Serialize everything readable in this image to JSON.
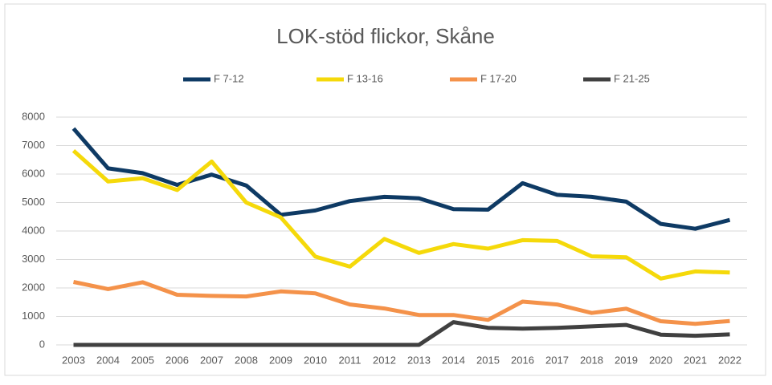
{
  "chart_data": {
    "type": "line",
    "title": "LOK-stöd flickor, Skåne",
    "categories": [
      "2003",
      "2004",
      "2005",
      "2006",
      "2007",
      "2008",
      "2009",
      "2010",
      "2011",
      "2012",
      "2013",
      "2014",
      "2015",
      "2016",
      "2017",
      "2018",
      "2019",
      "2020",
      "2021",
      "2022"
    ],
    "series": [
      {
        "name": "F 7-12",
        "color": "#0e3a64",
        "values": [
          7600,
          6200,
          6030,
          5620,
          5980,
          5600,
          4570,
          4720,
          5050,
          5200,
          5150,
          4770,
          4750,
          5680,
          5270,
          5200,
          5030,
          4250,
          4080,
          4390
        ]
      },
      {
        "name": "F 13-16",
        "color": "#f5d90a",
        "values": [
          6820,
          5740,
          5850,
          5440,
          6440,
          5000,
          4480,
          3100,
          2750,
          3720,
          3230,
          3540,
          3380,
          3680,
          3650,
          3110,
          3080,
          2330,
          2580,
          2540
        ]
      },
      {
        "name": "F 17-20",
        "color": "#f4924a",
        "values": [
          2210,
          1960,
          2200,
          1760,
          1720,
          1700,
          1880,
          1810,
          1420,
          1280,
          1050,
          1050,
          880,
          1520,
          1420,
          1120,
          1270,
          830,
          740,
          840
        ]
      },
      {
        "name": "F 21-25",
        "color": "#404040",
        "values": [
          0,
          0,
          0,
          0,
          0,
          0,
          0,
          0,
          0,
          0,
          0,
          800,
          600,
          570,
          600,
          650,
          700,
          360,
          320,
          370
        ]
      }
    ],
    "ylim": [
      0,
      8000
    ],
    "yticks": [
      0,
      1000,
      2000,
      3000,
      4000,
      5000,
      6000,
      7000,
      8000
    ],
    "grid": true,
    "legend": "top"
  }
}
